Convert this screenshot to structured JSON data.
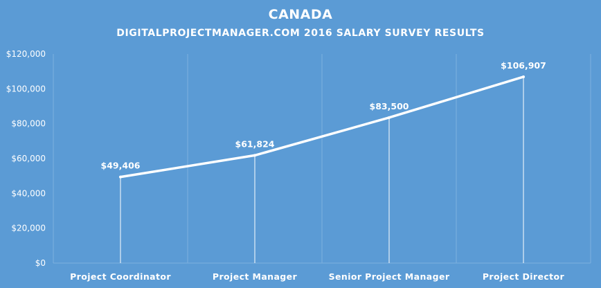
{
  "chart_data": {
    "type": "line",
    "title": "CANADA",
    "subtitle": "DIGITALPROJECTMANAGER.COM 2016 SALARY SURVEY RESULTS",
    "categories": [
      "Project Coordinator",
      "Project Manager",
      "Senior Project Manager",
      "Project Director"
    ],
    "values": [
      49406,
      61824,
      83500,
      106907
    ],
    "data_labels": [
      "$49,406",
      "$61,824",
      "$83,500",
      "$106,907"
    ],
    "ylim": [
      0,
      120000
    ],
    "yticks": [
      0,
      20000,
      40000,
      60000,
      80000,
      100000,
      120000
    ],
    "ytick_labels": [
      "$0",
      "$20,000",
      "$40,000",
      "$60,000",
      "$80,000",
      "$100,000",
      "$120,000"
    ],
    "xlabel": "",
    "ylabel": "",
    "grid": true,
    "drop_lines": true,
    "legend": "none",
    "colors": {
      "background": "#5b9bd5",
      "line": "#ffffff",
      "text": "#ffffff",
      "grid": "#7eb0df"
    }
  }
}
